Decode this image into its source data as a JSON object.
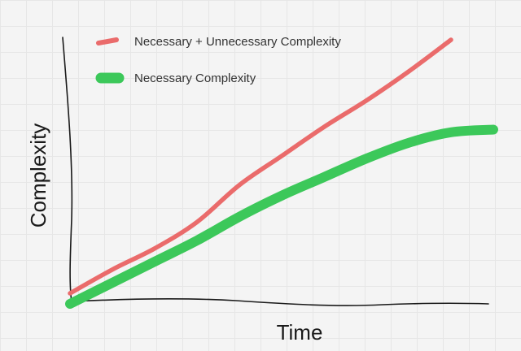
{
  "chart_data": {
    "type": "line",
    "title": "",
    "xlabel": "Time",
    "ylabel": "Complexity",
    "x": [
      0,
      1,
      2,
      3,
      4,
      5,
      6,
      7,
      8,
      9,
      10
    ],
    "xlim": [
      0,
      10
    ],
    "ylim": [
      0,
      10
    ],
    "grid": true,
    "legend_position": "top-left",
    "series": [
      {
        "name": "Necessary + Unnecessary Complexity",
        "color": "#ea6b6b",
        "values": [
          0.4,
          1.3,
          2.1,
          3.1,
          4.5,
          5.6,
          6.7,
          7.7,
          8.8,
          10.0,
          null
        ]
      },
      {
        "name": "Necessary Complexity",
        "color": "#3cc85a",
        "values": [
          0.0,
          0.8,
          1.6,
          2.4,
          3.3,
          4.1,
          4.8,
          5.5,
          6.1,
          6.5,
          6.6
        ]
      }
    ]
  }
}
